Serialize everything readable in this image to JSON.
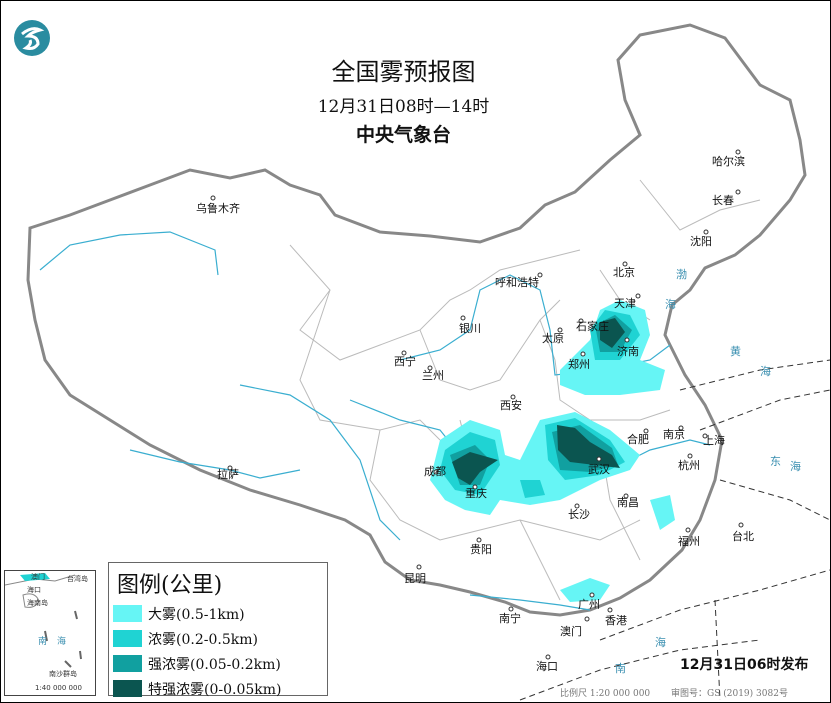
{
  "header": {
    "title": "全国雾预报图",
    "time_range": "12月31日08时—14时",
    "issuer": "中央气象台"
  },
  "logo": {
    "name": "cma-logo",
    "color": "#2a8ca0"
  },
  "legend": {
    "header": "图例(公里)",
    "items": [
      {
        "label": "大雾(0.5-1km)",
        "color": "#66f5f5"
      },
      {
        "label": "浓雾(0.2-0.5km)",
        "color": "#1fd3d3"
      },
      {
        "label": "强浓雾(0.05-0.2km)",
        "color": "#11a0a0"
      },
      {
        "label": "特强浓雾(0-0.05km)",
        "color": "#0b5550"
      }
    ]
  },
  "cities": [
    "乌鲁木齐",
    "哈尔滨",
    "长春",
    "沈阳",
    "北京",
    "天津",
    "呼和浩特",
    "石家庄",
    "太原",
    "济南",
    "银川",
    "西宁",
    "兰州",
    "郑州",
    "西安",
    "南京",
    "合肥",
    "上海",
    "杭州",
    "武汉",
    "成都",
    "重庆",
    "拉萨",
    "长沙",
    "南昌",
    "福州",
    "台北",
    "贵阳",
    "昆明",
    "南宁",
    "广州",
    "香港",
    "澳门",
    "海口"
  ],
  "seas": [
    "渤",
    "海",
    "黄",
    "海",
    "东",
    "海",
    "南",
    "海"
  ],
  "inset": {
    "labels": [
      "澳门",
      "台湾岛",
      "海口",
      "海南岛",
      "南",
      "海",
      "南沙群岛",
      "1:40 000 000"
    ]
  },
  "footer": {
    "issue_time": "12月31日06时发布",
    "scale": "比例尺 1:20 000 000",
    "approval": "审图号：GS (2019) 3082号"
  }
}
